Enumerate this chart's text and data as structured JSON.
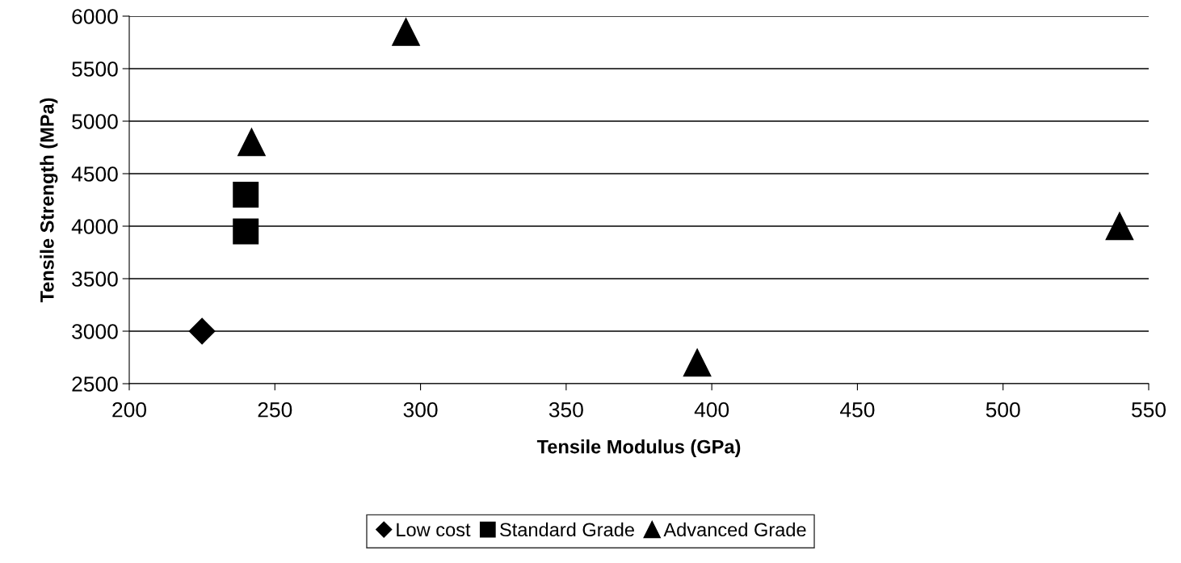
{
  "chart_data": {
    "type": "scatter",
    "xlabel": "Tensile Modulus (GPa)",
    "ylabel": "Tensile Strength (MPa)",
    "xlim": [
      200,
      550
    ],
    "xticks": [
      200,
      250,
      300,
      350,
      400,
      450,
      500,
      550
    ],
    "ylim": [
      2500,
      6000
    ],
    "yticks": [
      2500,
      3000,
      3500,
      4000,
      4500,
      5000,
      5500,
      6000
    ],
    "grid": "y",
    "legend": "bottom",
    "series": [
      {
        "name": "Low cost",
        "color": "#000000",
        "marker": "diamond",
        "x": [
          225
        ],
        "values": [
          3000
        ]
      },
      {
        "name": "Standard Grade",
        "color": "#000000",
        "marker": "square",
        "x": [
          240,
          240
        ],
        "values": [
          4300,
          3950
        ]
      },
      {
        "name": "Advanced Grade",
        "color": "#000000",
        "marker": "triangle",
        "x": [
          242,
          295,
          395,
          540
        ],
        "values": [
          4800,
          5850,
          2700,
          4000
        ]
      }
    ]
  }
}
